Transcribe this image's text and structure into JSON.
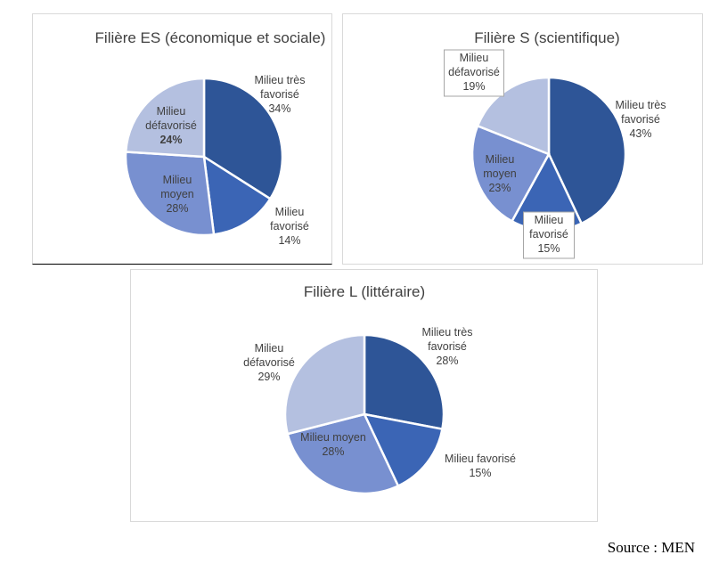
{
  "chart_data": [
    {
      "type": "pie",
      "title": "Filière ES (économique et sociale)",
      "colors": [
        "#2e5597",
        "#3b65b5",
        "#7890d0",
        "#b4c0e0"
      ],
      "slices": [
        {
          "label": [
            "Milieu très",
            "favorisé"
          ],
          "percent_label": "34%",
          "value": 34
        },
        {
          "label": [
            "Milieu",
            "favorisé"
          ],
          "percent_label": "14%",
          "value": 14
        },
        {
          "label": [
            "Milieu",
            "moyen"
          ],
          "percent_label": "28%",
          "value": 28
        },
        {
          "label": [
            "Milieu",
            "défavorisé"
          ],
          "percent_label": "24%",
          "value": 24
        }
      ]
    },
    {
      "type": "pie",
      "title": "Filière S (scientifique)",
      "colors": [
        "#2e5597",
        "#3b65b5",
        "#7890d0",
        "#b4c0e0"
      ],
      "slices": [
        {
          "label": [
            "Milieu très",
            "favorisé"
          ],
          "percent_label": "43%",
          "value": 43
        },
        {
          "label": [
            "Milieu",
            "favorisé"
          ],
          "percent_label": "15%",
          "value": 15
        },
        {
          "label": [
            "Milieu",
            "moyen"
          ],
          "percent_label": "23%",
          "value": 23
        },
        {
          "label": [
            "Milieu",
            "défavorisé"
          ],
          "percent_label": "19%",
          "value": 19
        }
      ]
    },
    {
      "type": "pie",
      "title": "Filière L (littéraire)",
      "colors": [
        "#2e5597",
        "#3b65b5",
        "#7890d0",
        "#b4c0e0"
      ],
      "slices": [
        {
          "label": [
            "Milieu très",
            "favorisé"
          ],
          "percent_label": "28%",
          "value": 28
        },
        {
          "label": [
            "Milieu favorisé"
          ],
          "percent_label": "15%",
          "value": 15
        },
        {
          "label": [
            "Milieu moyen"
          ],
          "percent_label": "28%",
          "value": 28
        },
        {
          "label": [
            "Milieu",
            "défavorisé"
          ],
          "percent_label": "29%",
          "value": 29
        }
      ]
    }
  ],
  "source": "Source : MEN"
}
